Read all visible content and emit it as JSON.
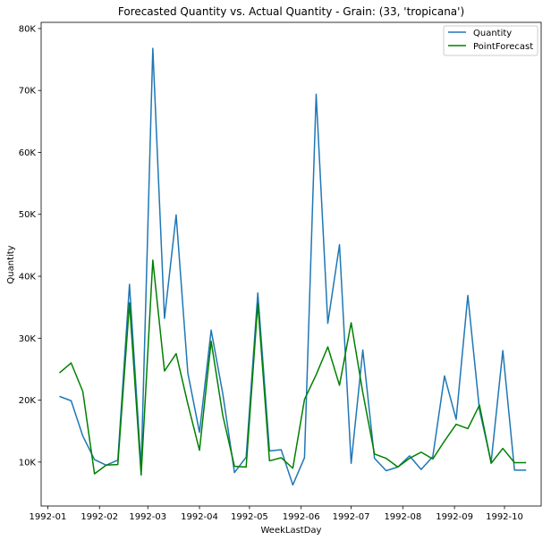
{
  "chart_data": {
    "type": "line",
    "title": "Forecasted Quantity vs. Actual Quantity - Grain: (33, 'tropicana')",
    "xlabel": "WeekLastDay",
    "ylabel": "Quantity",
    "x_ticks": [
      "1992-01",
      "1992-02",
      "1992-03",
      "1992-04",
      "1992-05",
      "1992-06",
      "1992-07",
      "1992-08",
      "1992-09",
      "1992-10"
    ],
    "y_ticks": [
      "10K",
      "20K",
      "30K",
      "40K",
      "50K",
      "60K",
      "70K",
      "80K"
    ],
    "ylim": [
      2900,
      81000
    ],
    "xlim": [
      "1991-12-28",
      "1992-10-23"
    ],
    "grid": false,
    "legend_position": "top-right",
    "x": [
      "1992-01-08",
      "1992-01-15",
      "1992-01-22",
      "1992-01-29",
      "1992-02-05",
      "1992-02-12",
      "1992-02-19",
      "1992-02-26",
      "1992-03-04",
      "1992-03-11",
      "1992-03-18",
      "1992-03-25",
      "1992-04-01",
      "1992-04-08",
      "1992-04-15",
      "1992-04-22",
      "1992-04-29",
      "1992-05-06",
      "1992-05-13",
      "1992-05-20",
      "1992-05-27",
      "1992-06-03",
      "1992-06-10",
      "1992-06-17",
      "1992-06-24",
      "1992-07-01",
      "1992-07-08",
      "1992-07-15",
      "1992-07-22",
      "1992-07-29",
      "1992-08-05",
      "1992-08-12",
      "1992-08-19",
      "1992-08-26",
      "1992-09-02",
      "1992-09-09",
      "1992-09-16",
      "1992-09-23",
      "1992-09-30",
      "1992-10-07",
      "1992-10-14"
    ],
    "series": [
      {
        "name": "Quantity",
        "color": "#1f77b4",
        "values": [
          20600,
          19900,
          14200,
          10400,
          9500,
          10300,
          38700,
          9000,
          76800,
          33200,
          49900,
          24400,
          14800,
          31300,
          21000,
          8300,
          10800,
          37300,
          11800,
          12000,
          6300,
          10700,
          69400,
          32400,
          45100,
          9800,
          28100,
          10600,
          8600,
          9200,
          11000,
          8800,
          10900,
          23900,
          16900,
          36900,
          18400,
          10000,
          28000,
          8700,
          8700
        ]
      },
      {
        "name": "PointForecast",
        "color": "#008000",
        "values": [
          24400,
          26000,
          21400,
          8100,
          9500,
          9600,
          35700,
          7900,
          42600,
          24700,
          27500,
          19400,
          11900,
          29500,
          17500,
          9300,
          9200,
          35600,
          10200,
          10700,
          9000,
          20100,
          24100,
          28600,
          22400,
          32500,
          21200,
          11300,
          10600,
          9200,
          10600,
          11600,
          10500,
          13400,
          16100,
          15400,
          19200,
          9800,
          12200,
          9900,
          9900
        ]
      }
    ]
  }
}
